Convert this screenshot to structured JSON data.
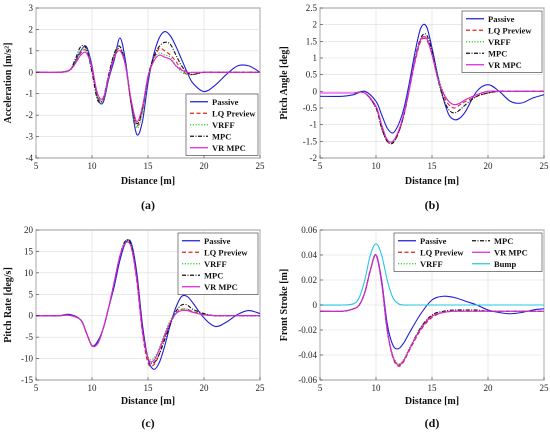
{
  "colors": {
    "Passive": "#1f1fd6",
    "LQ Preview": "#e02020",
    "VRFF": "#22cc22",
    "MPC": "#111111",
    "VR MPC": "#e020e0",
    "Bump": "#22c8e0"
  },
  "dashes": {
    "Passive": "",
    "LQ Preview": "4,2.5",
    "VRFF": "1.2,1.6",
    "MPC": "4,1.5,1,1.5",
    "VR MPC": "",
    "Bump": ""
  },
  "chart_data": [
    {
      "type": "line",
      "caption": "(a)",
      "title": "",
      "xlabel": "Distance [m]",
      "ylabel": "Acceleration [m/s²]",
      "xlim": [
        5,
        25
      ],
      "ylim": [
        -4,
        3
      ],
      "xticks": [
        5,
        10,
        15,
        20,
        25
      ],
      "yticks": [
        -4,
        -3,
        -2,
        -1,
        0,
        1,
        2,
        3
      ],
      "grid": true,
      "legend": "bottom-right",
      "x": [
        5,
        7,
        8,
        8.5,
        9,
        9.5,
        10,
        10.5,
        11,
        11.5,
        12,
        12.5,
        13,
        13.5,
        14,
        14.5,
        15,
        15.5,
        16,
        16.5,
        17,
        17.5,
        18,
        18.5,
        19,
        20,
        21,
        22,
        23,
        24,
        25
      ],
      "series": [
        {
          "name": "Passive",
          "values": [
            0,
            0,
            0.1,
            0.5,
            1.0,
            1.2,
            0.3,
            -1.2,
            -1.4,
            -0.3,
            0.6,
            1.6,
            0.5,
            -1.5,
            -2.9,
            -2.3,
            -0.5,
            0.8,
            1.6,
            1.9,
            1.7,
            1.2,
            0.6,
            0.0,
            -0.5,
            -0.9,
            -0.6,
            -0.1,
            0.3,
            0.3,
            0
          ]
        },
        {
          "name": "LQ Preview",
          "values": [
            0,
            0,
            0.1,
            0.4,
            0.9,
            1.0,
            0.1,
            -1.1,
            -1.3,
            -0.1,
            0.8,
            1.1,
            0.3,
            -1.5,
            -2.5,
            -1.8,
            -0.2,
            0.6,
            1.1,
            1.0,
            0.8,
            0.5,
            0.1,
            -0.1,
            -0.1,
            0,
            0,
            0,
            0,
            0,
            0
          ]
        },
        {
          "name": "VRFF",
          "values": [
            0,
            0,
            0.1,
            0.5,
            1.0,
            1.1,
            0.2,
            -1.2,
            -1.3,
            -0.2,
            0.8,
            1.2,
            0.3,
            -1.5,
            -2.6,
            -1.9,
            -0.3,
            0.6,
            0.9,
            0.8,
            0.7,
            0.3,
            0.0,
            -0.1,
            -0.1,
            0,
            0,
            0,
            0,
            0,
            0
          ]
        },
        {
          "name": "MPC",
          "values": [
            0,
            0,
            0.1,
            0.6,
            1.2,
            1.1,
            0.0,
            -1.3,
            -1.2,
            -0.1,
            0.9,
            1.2,
            0.3,
            -1.4,
            -2.4,
            -1.7,
            -0.2,
            0.7,
            1.2,
            1.4,
            1.3,
            0.8,
            0.3,
            0,
            -0.1,
            0,
            0,
            0,
            0,
            0,
            0
          ]
        },
        {
          "name": "VR MPC",
          "values": [
            0,
            0,
            0.1,
            0.4,
            0.8,
            0.9,
            0.2,
            -1.0,
            -1.2,
            -0.2,
            0.7,
            1.0,
            0.3,
            -1.3,
            -2.3,
            -1.6,
            -0.2,
            0.5,
            0.8,
            0.7,
            0.6,
            0.3,
            0.1,
            0,
            0,
            0,
            0,
            0,
            0,
            0,
            0
          ]
        }
      ]
    },
    {
      "type": "line",
      "caption": "(b)",
      "title": "",
      "xlabel": "Distance [m]",
      "ylabel": "Pitch Angle [deg]",
      "xlim": [
        5,
        25
      ],
      "ylim": [
        -2,
        2.5
      ],
      "xticks": [
        5,
        10,
        15,
        20,
        25
      ],
      "yticks": [
        -2,
        -1.5,
        -1,
        -0.5,
        0,
        0.5,
        1,
        1.5,
        2,
        2.5
      ],
      "grid": true,
      "legend": "top-right",
      "x": [
        5,
        7,
        8,
        9,
        10,
        10.5,
        11,
        11.5,
        12,
        12.5,
        13,
        13.5,
        14,
        14.5,
        15,
        15.5,
        16,
        16.5,
        17,
        17.5,
        18,
        19,
        20,
        21,
        22,
        23,
        24,
        25
      ],
      "series": [
        {
          "name": "Passive",
          "values": [
            -0.15,
            -0.15,
            -0.1,
            0.0,
            -0.3,
            -0.7,
            -1.1,
            -1.25,
            -1.0,
            -0.5,
            0.3,
            1.2,
            1.9,
            1.95,
            1.3,
            0.5,
            -0.2,
            -0.7,
            -0.85,
            -0.8,
            -0.6,
            0.0,
            0.2,
            0.0,
            -0.3,
            -0.35,
            -0.2,
            -0.1
          ]
        },
        {
          "name": "LQ Preview",
          "values": [
            -0.05,
            -0.05,
            -0.05,
            -0.05,
            -0.5,
            -1.1,
            -1.5,
            -1.55,
            -1.25,
            -0.7,
            0.1,
            0.9,
            1.5,
            1.55,
            1.1,
            0.4,
            -0.1,
            -0.4,
            -0.5,
            -0.4,
            -0.3,
            -0.15,
            -0.05,
            0,
            0,
            0,
            0,
            0
          ]
        },
        {
          "name": "VRFF",
          "values": [
            -0.05,
            -0.05,
            -0.05,
            -0.05,
            -0.45,
            -1.05,
            -1.45,
            -1.5,
            -1.2,
            -0.65,
            0.1,
            0.95,
            1.55,
            1.6,
            1.15,
            0.5,
            0.0,
            -0.3,
            -0.4,
            -0.35,
            -0.25,
            -0.1,
            0,
            0,
            0,
            0,
            0,
            0
          ]
        },
        {
          "name": "MPC",
          "values": [
            -0.05,
            -0.05,
            -0.05,
            -0.05,
            -0.5,
            -1.1,
            -1.5,
            -1.55,
            -1.25,
            -0.7,
            0.1,
            1.0,
            1.6,
            1.7,
            1.2,
            0.4,
            -0.2,
            -0.55,
            -0.65,
            -0.55,
            -0.4,
            -0.15,
            -0.05,
            0,
            0,
            0,
            0,
            0
          ]
        },
        {
          "name": "VR MPC",
          "values": [
            -0.05,
            -0.05,
            -0.05,
            -0.05,
            -0.45,
            -1.0,
            -1.45,
            -1.5,
            -1.2,
            -0.65,
            0.1,
            0.95,
            1.55,
            1.6,
            1.1,
            0.4,
            -0.05,
            -0.3,
            -0.4,
            -0.35,
            -0.25,
            -0.1,
            0,
            0,
            0,
            0,
            0,
            0
          ]
        }
      ]
    },
    {
      "type": "line",
      "caption": "(c)",
      "title": "",
      "xlabel": "Distance [m]",
      "ylabel": "Pitch Rate [deg/s]",
      "xlim": [
        5,
        25
      ],
      "ylim": [
        -15,
        20
      ],
      "xticks": [
        5,
        10,
        15,
        20,
        25
      ],
      "yticks": [
        -15,
        -10,
        -5,
        0,
        5,
        10,
        15,
        20
      ],
      "grid": true,
      "legend": "top-right",
      "x": [
        5,
        7,
        8,
        9,
        9.5,
        10,
        10.5,
        11,
        11.5,
        12,
        12.5,
        13,
        13.5,
        14,
        14.5,
        15,
        15.5,
        16,
        16.5,
        17,
        17.5,
        18,
        18.5,
        19,
        20,
        21,
        22,
        23,
        24,
        25
      ],
      "series": [
        {
          "name": "Passive",
          "values": [
            0,
            0,
            0.3,
            -1,
            -4,
            -7,
            -6,
            -3,
            2,
            7,
            13,
            17,
            17,
            10,
            -2,
            -10,
            -12.5,
            -11,
            -7,
            -2,
            2,
            4.5,
            4.5,
            3,
            -0.5,
            -2.5,
            -1.5,
            0.3,
            1.2,
            0.5
          ]
        },
        {
          "name": "LQ Preview",
          "values": [
            0,
            0,
            0.1,
            -1,
            -4,
            -7,
            -6.5,
            -3,
            2,
            8,
            14,
            17,
            16,
            8,
            -4,
            -11,
            -11.5,
            -9,
            -5,
            -1.5,
            0.5,
            1.5,
            1.5,
            1,
            0.3,
            0,
            0,
            0,
            0,
            0
          ]
        },
        {
          "name": "VRFF",
          "values": [
            0,
            0,
            0.1,
            -1,
            -4,
            -7,
            -6.5,
            -3,
            2,
            8,
            14,
            17.5,
            16.5,
            9,
            -3,
            -9.5,
            -10,
            -7.5,
            -4,
            -1,
            1,
            1.5,
            1.5,
            1,
            0.3,
            0,
            0,
            0,
            0,
            0
          ]
        },
        {
          "name": "MPC",
          "values": [
            0,
            0,
            0.1,
            -1,
            -4,
            -7,
            -6.5,
            -3,
            2,
            8,
            14,
            17.5,
            16.5,
            9,
            -3,
            -10,
            -11,
            -9,
            -5.5,
            -2,
            1,
            2.5,
            2.5,
            1.5,
            0.5,
            0,
            0,
            0,
            0,
            0
          ]
        },
        {
          "name": "VR MPC",
          "values": [
            0,
            0,
            0.1,
            -1,
            -4,
            -7,
            -6.5,
            -3,
            2,
            8,
            14,
            17,
            16,
            8.5,
            -3.5,
            -10,
            -10.5,
            -8,
            -4.5,
            -1.5,
            0.5,
            1.2,
            1.2,
            0.8,
            0.2,
            0,
            0,
            0,
            0,
            0
          ]
        }
      ]
    },
    {
      "type": "line",
      "caption": "(d)",
      "title": "",
      "xlabel": "Distance [m]",
      "ylabel": "Front Stroke [m]",
      "xlim": [
        5,
        25
      ],
      "ylim": [
        -0.06,
        0.06
      ],
      "xticks": [
        5,
        10,
        15,
        20,
        25
      ],
      "yticks": [
        -0.06,
        -0.04,
        -0.02,
        0,
        0.02,
        0.04,
        0.06
      ],
      "grid": true,
      "legend": "top-right",
      "x": [
        5,
        7,
        8,
        8.5,
        9,
        9.5,
        10,
        10.5,
        11,
        11.5,
        12,
        12.5,
        13,
        14,
        15,
        16,
        17,
        18,
        19,
        20,
        21,
        22,
        23,
        24,
        25
      ],
      "series": [
        {
          "name": "Passive",
          "values": [
            -0.005,
            -0.005,
            -0.003,
            0.0,
            0.01,
            0.028,
            0.04,
            0.02,
            -0.015,
            -0.032,
            -0.035,
            -0.03,
            -0.022,
            -0.007,
            0.004,
            0.007,
            0.006,
            0.003,
            0.0,
            -0.004,
            -0.006,
            -0.007,
            -0.006,
            -0.004,
            -0.003
          ]
        },
        {
          "name": "LQ Preview",
          "values": [
            -0.005,
            -0.005,
            -0.003,
            0.0,
            0.01,
            0.028,
            0.04,
            0.018,
            -0.02,
            -0.042,
            -0.049,
            -0.045,
            -0.036,
            -0.02,
            -0.01,
            -0.006,
            -0.005,
            -0.005,
            -0.005,
            -0.005,
            -0.005,
            -0.005,
            -0.005,
            -0.005,
            -0.005
          ]
        },
        {
          "name": "VRFF",
          "values": [
            -0.005,
            -0.005,
            -0.003,
            0.0,
            0.01,
            0.028,
            0.04,
            0.018,
            -0.02,
            -0.04,
            -0.047,
            -0.043,
            -0.034,
            -0.018,
            -0.009,
            -0.006,
            -0.005,
            -0.005,
            -0.005,
            -0.005,
            -0.005,
            -0.005,
            -0.005,
            -0.005,
            -0.005
          ]
        },
        {
          "name": "MPC",
          "values": [
            -0.005,
            -0.005,
            -0.003,
            0.0,
            0.01,
            0.028,
            0.04,
            0.018,
            -0.02,
            -0.041,
            -0.048,
            -0.044,
            -0.035,
            -0.018,
            -0.008,
            -0.005,
            -0.004,
            -0.004,
            -0.004,
            -0.005,
            -0.005,
            -0.005,
            -0.005,
            -0.005,
            -0.005
          ]
        },
        {
          "name": "VR MPC",
          "values": [
            -0.005,
            -0.005,
            -0.003,
            0.0,
            0.01,
            0.028,
            0.04,
            0.018,
            -0.02,
            -0.041,
            -0.048,
            -0.044,
            -0.035,
            -0.019,
            -0.009,
            -0.006,
            -0.005,
            -0.005,
            -0.005,
            -0.005,
            -0.005,
            -0.005,
            -0.005,
            -0.005,
            -0.005
          ]
        },
        {
          "name": "Bump",
          "values": [
            0,
            0,
            0.001,
            0.006,
            0.02,
            0.04,
            0.049,
            0.04,
            0.02,
            0.006,
            0.001,
            0,
            0,
            0,
            0,
            0,
            0,
            0,
            0,
            0,
            0,
            0,
            0,
            0,
            0
          ]
        }
      ]
    }
  ]
}
